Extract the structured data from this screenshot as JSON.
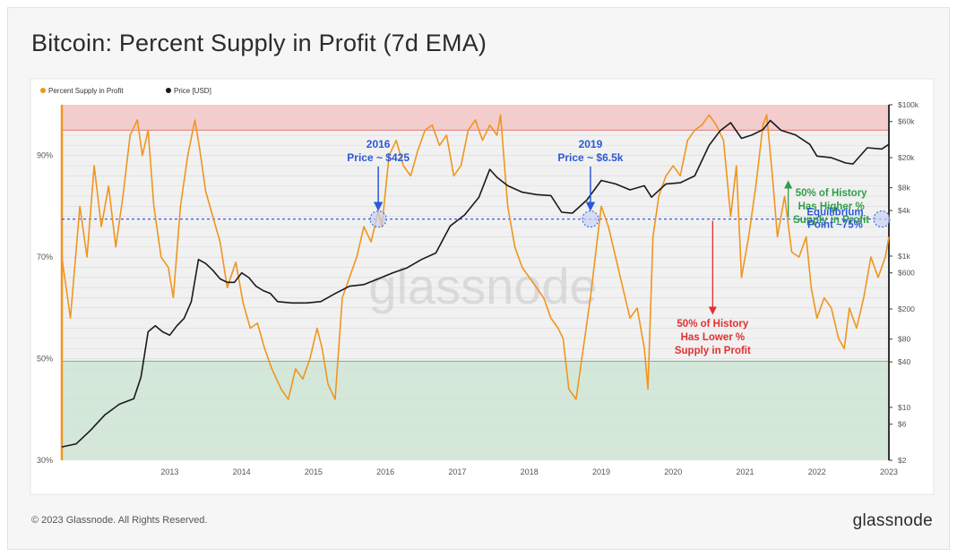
{
  "title": "Bitcoin: Percent Supply in Profit (7d EMA)",
  "footer": {
    "copyright": "© 2023 Glassnode. All Rights Reserved.",
    "logo": "glassnode"
  },
  "watermark": "glassnode",
  "colors": {
    "supply": "#f0951f",
    "price": "#1a1a1a",
    "upper_band": "#f4c6c6",
    "lower_band": "#cfe6d6",
    "equilibrium": "#3b5bdb",
    "red_note": "#e03131",
    "green_note": "#2f9e44",
    "blue_note": "#2b59d6"
  },
  "chart_data": {
    "type": "line",
    "x_ticks": [
      "2013",
      "2014",
      "2015",
      "2016",
      "2017",
      "2018",
      "2019",
      "2020",
      "2021",
      "2022",
      "2023"
    ],
    "y_left": {
      "label": "",
      "min": 30,
      "max": 100,
      "ticks": [
        "30%",
        "50%",
        "70%",
        "90%"
      ],
      "tick_values": [
        30,
        50,
        70,
        90
      ]
    },
    "y_right": {
      "label": "",
      "scale": "log",
      "ticks": [
        "$2",
        "$6",
        "$10",
        "$40",
        "$80",
        "$200",
        "$600",
        "$1k",
        "$4k",
        "$8k",
        "$20k",
        "$60k",
        "$100k"
      ],
      "tick_values": [
        2,
        6,
        10,
        40,
        80,
        200,
        600,
        1000,
        4000,
        8000,
        20000,
        60000,
        100000
      ]
    },
    "legend": [
      {
        "name": "Percent Supply in Profit",
        "color": "#f0951f"
      },
      {
        "name": "Price [USD]",
        "color": "#1a1a1a"
      }
    ],
    "legend_position": "top-left",
    "bands": [
      {
        "from": 95,
        "to": 100,
        "color": "#f4c6c6"
      },
      {
        "from": 30,
        "to": 49.5,
        "color": "#cfe6d6"
      }
    ],
    "equilibrium_line": 77.5,
    "series": [
      {
        "name": "Percent Supply in Profit",
        "axis": "left",
        "x": [
          2012.0,
          2012.12,
          2012.25,
          2012.35,
          2012.45,
          2012.55,
          2012.65,
          2012.75,
          2012.85,
          2012.95,
          2013.05,
          2013.12,
          2013.2,
          2013.28,
          2013.38,
          2013.48,
          2013.55,
          2013.65,
          2013.75,
          2013.85,
          2013.92,
          2014.0,
          2014.1,
          2014.2,
          2014.3,
          2014.42,
          2014.52,
          2014.62,
          2014.72,
          2014.82,
          2014.92,
          2015.05,
          2015.15,
          2015.25,
          2015.35,
          2015.45,
          2015.55,
          2015.62,
          2015.7,
          2015.8,
          2015.9,
          2016.0,
          2016.1,
          2016.2,
          2016.3,
          2016.4,
          2016.45,
          2016.55,
          2016.65,
          2016.75,
          2016.85,
          2016.95,
          2017.05,
          2017.15,
          2017.25,
          2017.35,
          2017.45,
          2017.55,
          2017.65,
          2017.75,
          2017.85,
          2017.95,
          2018.05,
          2018.1,
          2018.2,
          2018.3,
          2018.4,
          2018.5,
          2018.6,
          2018.7,
          2018.8,
          2018.9,
          2018.97,
          2019.05,
          2019.15,
          2019.25,
          2019.35,
          2019.45,
          2019.5,
          2019.6,
          2019.7,
          2019.8,
          2019.9,
          2020.0,
          2020.1,
          2020.15,
          2020.22,
          2020.3,
          2020.4,
          2020.5,
          2020.6,
          2020.7,
          2020.8,
          2020.9,
          2021.0,
          2021.1,
          2021.2,
          2021.3,
          2021.38,
          2021.45,
          2021.55,
          2021.65,
          2021.75,
          2021.8,
          2021.88,
          2021.95,
          2022.05,
          2022.15,
          2022.25,
          2022.35,
          2022.42,
          2022.5,
          2022.6,
          2022.7,
          2022.8,
          2022.88,
          2022.95,
          2023.05,
          2023.15,
          2023.25,
          2023.35,
          2023.45,
          2023.5
        ],
        "y": [
          70,
          58,
          80,
          70,
          88,
          76,
          84,
          72,
          82,
          94,
          97,
          90,
          95,
          80,
          70,
          68,
          62,
          80,
          90,
          97,
          91,
          83,
          78,
          73,
          64,
          69,
          61,
          56,
          57,
          52,
          48,
          44,
          42,
          48,
          46,
          50,
          56,
          52,
          45,
          42,
          62,
          66,
          70,
          76,
          73,
          79,
          76,
          90,
          93,
          88,
          86,
          91,
          95,
          96,
          92,
          94,
          86,
          88,
          95,
          97,
          93,
          96,
          94,
          98,
          80,
          72,
          68,
          66,
          64,
          62,
          58,
          56,
          54,
          44,
          42,
          52,
          62,
          74,
          80,
          76,
          70,
          64,
          58,
          60,
          52,
          44,
          74,
          82,
          86,
          88,
          86,
          93,
          95,
          96,
          98,
          96,
          93,
          78,
          88,
          66,
          74,
          84,
          96,
          98,
          86,
          74,
          82,
          71,
          70,
          74,
          64,
          58,
          62,
          60,
          54,
          52,
          60,
          56,
          62,
          70,
          66,
          70,
          74
        ]
      },
      {
        "name": "Price [USD]",
        "axis": "right",
        "x": [
          2012.0,
          2012.2,
          2012.4,
          2012.6,
          2012.8,
          2013.0,
          2013.1,
          2013.2,
          2013.3,
          2013.4,
          2013.5,
          2013.6,
          2013.7,
          2013.8,
          2013.9,
          2014.0,
          2014.1,
          2014.2,
          2014.3,
          2014.4,
          2014.5,
          2014.6,
          2014.7,
          2014.8,
          2014.9,
          2015.0,
          2015.2,
          2015.4,
          2015.6,
          2015.8,
          2016.0,
          2016.2,
          2016.4,
          2016.6,
          2016.8,
          2017.0,
          2017.2,
          2017.4,
          2017.6,
          2017.8,
          2017.95,
          2018.05,
          2018.2,
          2018.4,
          2018.6,
          2018.8,
          2018.95,
          2019.1,
          2019.3,
          2019.5,
          2019.7,
          2019.9,
          2020.1,
          2020.2,
          2020.4,
          2020.6,
          2020.8,
          2021.0,
          2021.15,
          2021.3,
          2021.45,
          2021.6,
          2021.75,
          2021.85,
          2022.0,
          2022.2,
          2022.4,
          2022.5,
          2022.7,
          2022.9,
          2023.0,
          2023.2,
          2023.4,
          2023.5
        ],
        "y": [
          3,
          3.3,
          5,
          8,
          11,
          13,
          25,
          100,
          120,
          100,
          90,
          120,
          150,
          250,
          900,
          800,
          650,
          500,
          450,
          450,
          600,
          520,
          400,
          350,
          320,
          250,
          240,
          240,
          250,
          320,
          400,
          420,
          500,
          600,
          700,
          900,
          1100,
          2500,
          3500,
          6000,
          14000,
          11000,
          8500,
          7000,
          6500,
          6300,
          3800,
          3700,
          5500,
          10000,
          9000,
          7500,
          8500,
          6000,
          9000,
          9300,
          11500,
          29000,
          45000,
          58000,
          36000,
          40000,
          47000,
          62000,
          46000,
          40000,
          30000,
          21000,
          20000,
          17000,
          16500,
          27000,
          26000,
          30000
        ]
      }
    ],
    "annotations": [
      {
        "text_lines": [
          "2016",
          "Price ~ $425"
        ],
        "x": 2016.4,
        "y": 77.5
      },
      {
        "text_lines": [
          "2019",
          "Price ~ $6.5k"
        ],
        "x": 2019.35,
        "y": 77.5
      },
      {
        "text_lines": [
          "50% of History",
          "Has Lower %",
          "Supply in Profit"
        ],
        "x": 2021.05
      },
      {
        "text_lines": [
          "50% of History",
          "Has Higher %",
          "Supply in Profit"
        ],
        "x": 2022.1
      },
      {
        "text_lines": [
          "Equilibrium",
          "Point ~75%"
        ],
        "x": 2023.45,
        "y": 77.5
      }
    ]
  }
}
